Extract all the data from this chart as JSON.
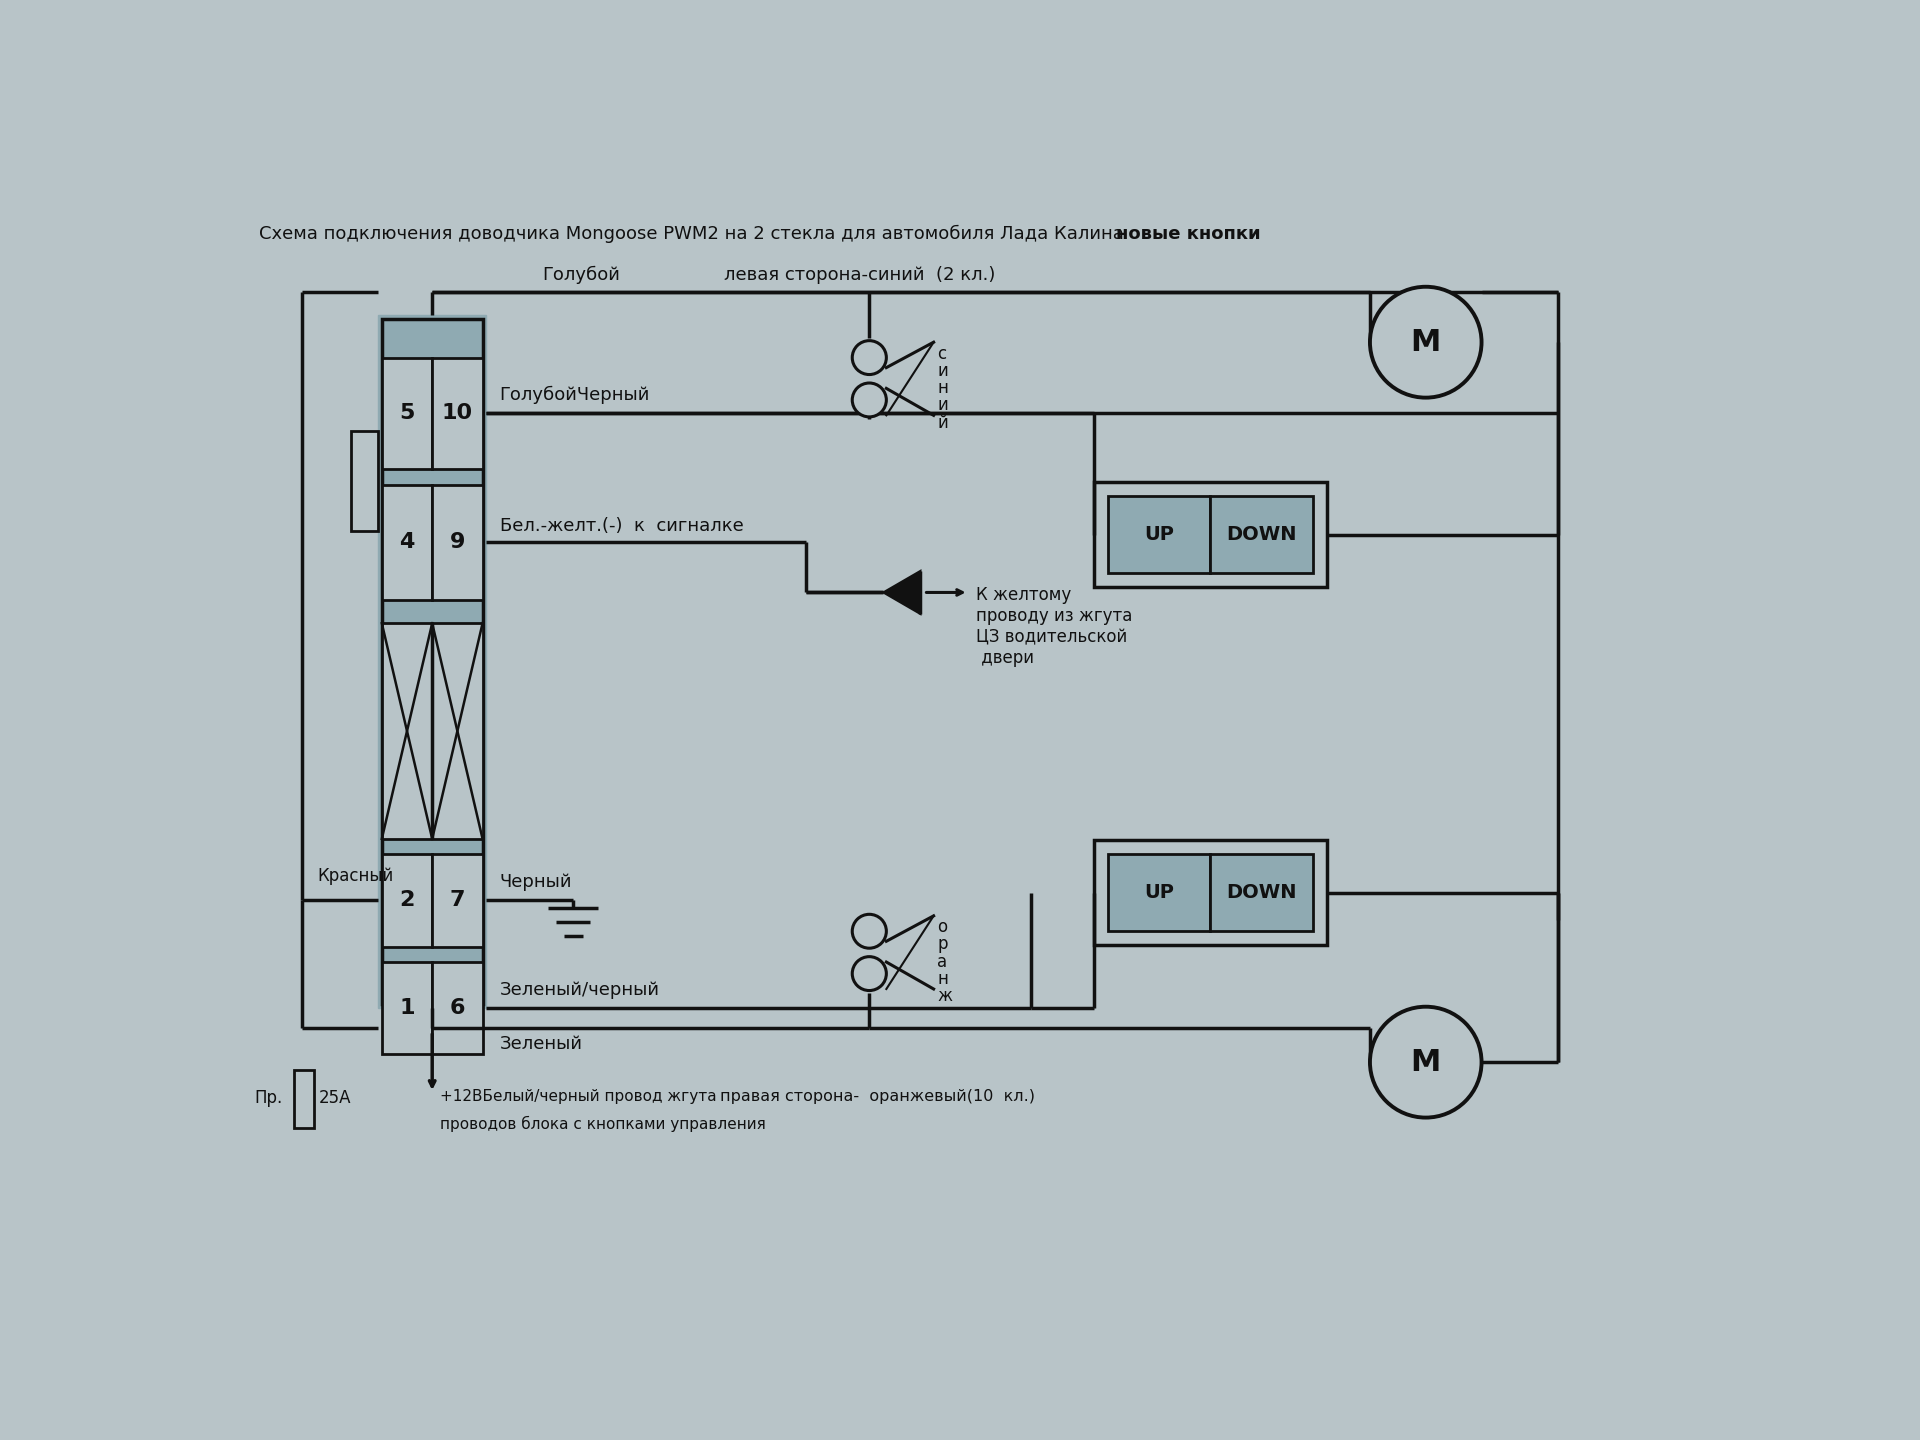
{
  "title": "Схема подключения доводчика Mongoose PWM2 на 2 стекла для автомобиля Лада Калина",
  "title2": "новые кнопки",
  "bg_color": "#b8c4c8",
  "text_color": "#111111",
  "connector_fill": "#8faab2",
  "wire_color": "#111111",
  "label_голубой": "Голубой",
  "label_left": "левая сторона-синий  (2 кл.)",
  "label_gb": "ГолубойЧерный",
  "label_bz": "Бел.-желт.(-)  к  сигналке",
  "label_black": "Черный",
  "label_gnblk": "Зеленый/черный",
  "label_green": "Зеленый",
  "label_red": "Красный",
  "label_fuse": "25А",
  "label_fuse2": "Пр.",
  "label_p12": "+12ВБелый/черный провод жгута",
  "label_p12b": "проводов блока с кнопками управления",
  "label_right": "правая сторона-  оранжевый(10  кл.)",
  "label_yellow": "К желтому\nпроводу из жгута\nЦЗ водительской\n двери",
  "blue_vert": "с\nи\nн\nи\nй",
  "orange_vert": "о\nр\nа\nн\nж"
}
